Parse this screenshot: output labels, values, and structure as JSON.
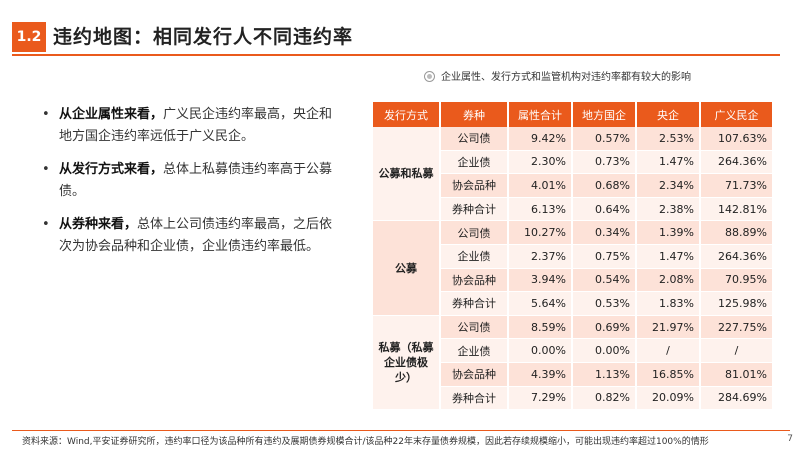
{
  "header": {
    "section_number": "1.2",
    "title": "违约地图：相同发行人不同违约率"
  },
  "bullets": [
    {
      "bold": "从企业属性来看，",
      "text": "广义民企违约率最高，央企和地方国企违约率远低于广义民企。"
    },
    {
      "bold": "从发行方式来看，",
      "text": "总体上私募债违约率高于公募债。"
    },
    {
      "bold": "从券种来看，",
      "text": "总体上公司债违约率最高，之后依次为协会品种和企业债，企业债违约率最低。"
    }
  ],
  "chart_caption": "企业属性、发行方式和监管机构对违约率都有较大的影响",
  "table": {
    "headers": [
      "发行方式",
      "券种",
      "属性合计",
      "地方国企",
      "央企",
      "广义民企"
    ],
    "groups": [
      {
        "name": "公募和私募",
        "rows": [
          [
            "公司债",
            "9.42%",
            "0.57%",
            "2.53%",
            "107.63%"
          ],
          [
            "企业债",
            "2.30%",
            "0.73%",
            "1.47%",
            "264.36%"
          ],
          [
            "协会品种",
            "4.01%",
            "0.68%",
            "2.34%",
            "71.73%"
          ],
          [
            "券种合计",
            "6.13%",
            "0.64%",
            "2.38%",
            "142.81%"
          ]
        ]
      },
      {
        "name": "公募",
        "rows": [
          [
            "公司债",
            "10.27%",
            "0.34%",
            "1.39%",
            "88.89%"
          ],
          [
            "企业债",
            "2.37%",
            "0.75%",
            "1.47%",
            "264.36%"
          ],
          [
            "协会品种",
            "3.94%",
            "0.54%",
            "2.08%",
            "70.95%"
          ],
          [
            "券种合计",
            "5.64%",
            "0.53%",
            "1.83%",
            "125.98%"
          ]
        ]
      },
      {
        "name": "私募（私募企业债极少）",
        "rows": [
          [
            "公司债",
            "8.59%",
            "0.69%",
            "21.97%",
            "227.75%"
          ],
          [
            "企业债",
            "0.00%",
            "0.00%",
            "/",
            "/"
          ],
          [
            "协会品种",
            "4.39%",
            "1.13%",
            "16.85%",
            "81.01%"
          ],
          [
            "券种合计",
            "7.29%",
            "0.82%",
            "20.09%",
            "284.69%"
          ]
        ]
      }
    ]
  },
  "footer": {
    "source": "资料来源：Wind,平安证券研究所，违约率口径为该品种所有违约及展期债券规模合计/该品种22年末存量债券规模，因此若存续规模缩小，可能出现违约率超过100%的情形",
    "page_number": "7"
  },
  "colors": {
    "accent": "#ea5a1c",
    "band_dark": "#fde2d8",
    "band_light": "#fef2ed"
  }
}
